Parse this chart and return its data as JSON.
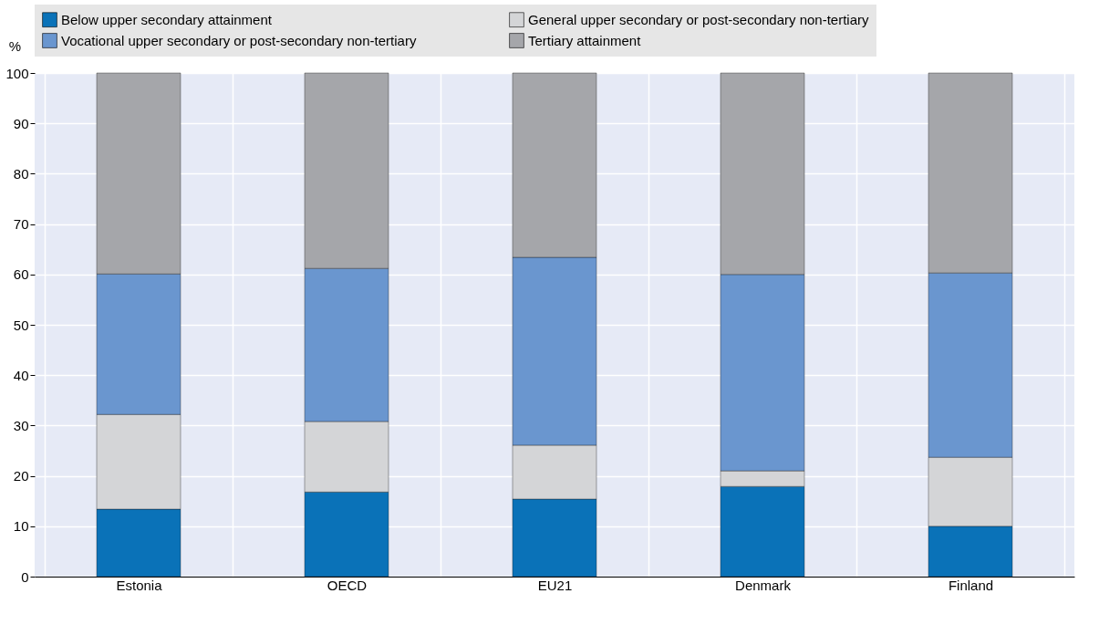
{
  "chart_data": {
    "type": "bar",
    "stacked": true,
    "ylabel": "%",
    "categories": [
      "Estonia",
      "OECD",
      "EU21",
      "Denmark",
      "Finland"
    ],
    "series": [
      {
        "name": "Below upper secondary attainment",
        "color": "#0a72b8",
        "values": [
          13.4,
          16.8,
          15.4,
          17.9,
          10.0
        ]
      },
      {
        "name": "General upper secondary or post-secondary non-tertiary",
        "color": "#d4d5d7",
        "values": [
          18.8,
          14.0,
          10.7,
          3.1,
          13.7
        ]
      },
      {
        "name": "Vocational upper secondary or post-secondary non-tertiary",
        "color": "#6a96cf",
        "values": [
          27.9,
          30.4,
          37.3,
          39.0,
          36.6
        ]
      },
      {
        "name": "Tertiary attainment",
        "color": "#a5a6aa",
        "values": [
          39.9,
          38.8,
          36.6,
          40.0,
          39.7
        ]
      }
    ],
    "ylim": [
      0,
      100
    ],
    "yticks": [
      0,
      10,
      20,
      30,
      40,
      50,
      60,
      70,
      80,
      90,
      100
    ],
    "grid": true,
    "legend": "top"
  }
}
